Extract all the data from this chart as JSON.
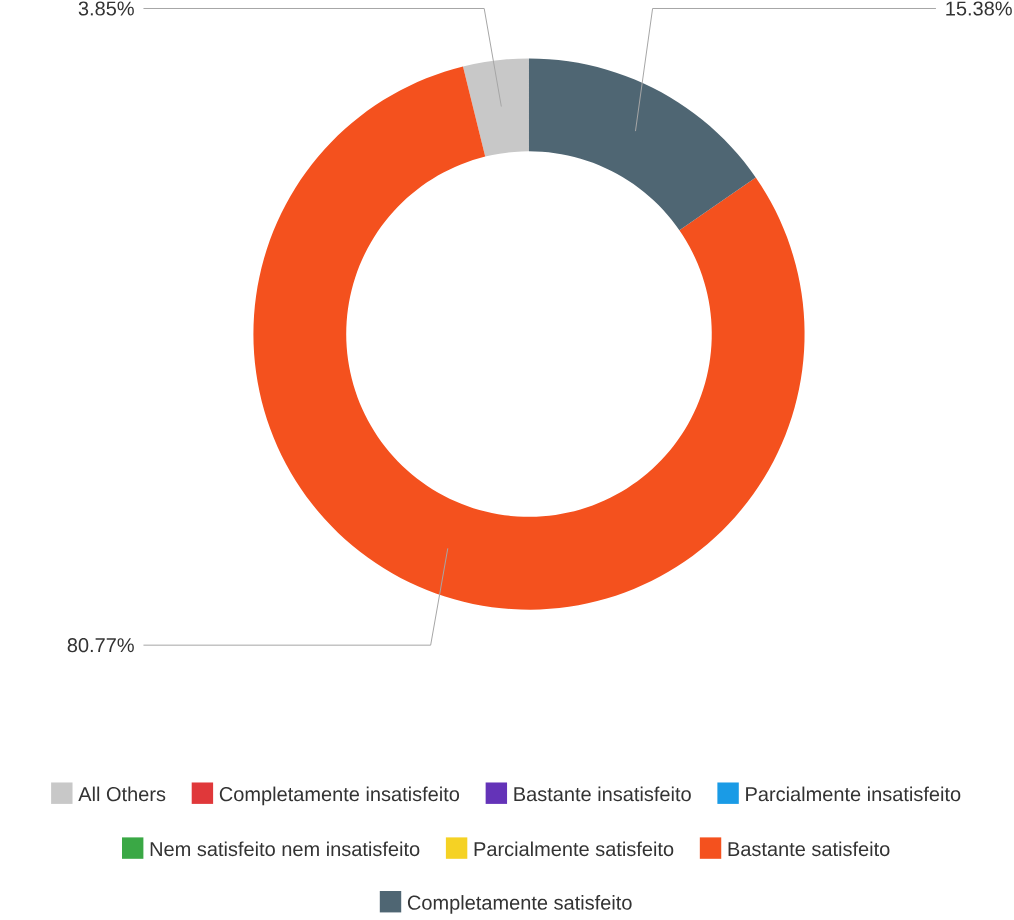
{
  "chart_data": {
    "type": "donut",
    "categories": [
      "All Others",
      "Completamente insatisfeito",
      "Bastante insatisfeito",
      "Parcialmente insatisfeito",
      "Nem satisfeito nem insatisfeito",
      "Parcialmente satisfeito",
      "Bastante satisfeito",
      "Completamente satisfeito"
    ],
    "values": [
      3.85,
      0,
      0,
      0,
      0,
      0,
      80.77,
      15.38
    ],
    "value_labels": [
      "3.85%",
      null,
      null,
      null,
      null,
      null,
      "80.77%",
      "15.38%"
    ],
    "colors": [
      "#c8c8c8",
      "#e0383a",
      "#6433b8",
      "#1a9be6",
      "#3aa845",
      "#f5d224",
      "#f4511e",
      "#4f6673"
    ],
    "legend": "bottom"
  }
}
